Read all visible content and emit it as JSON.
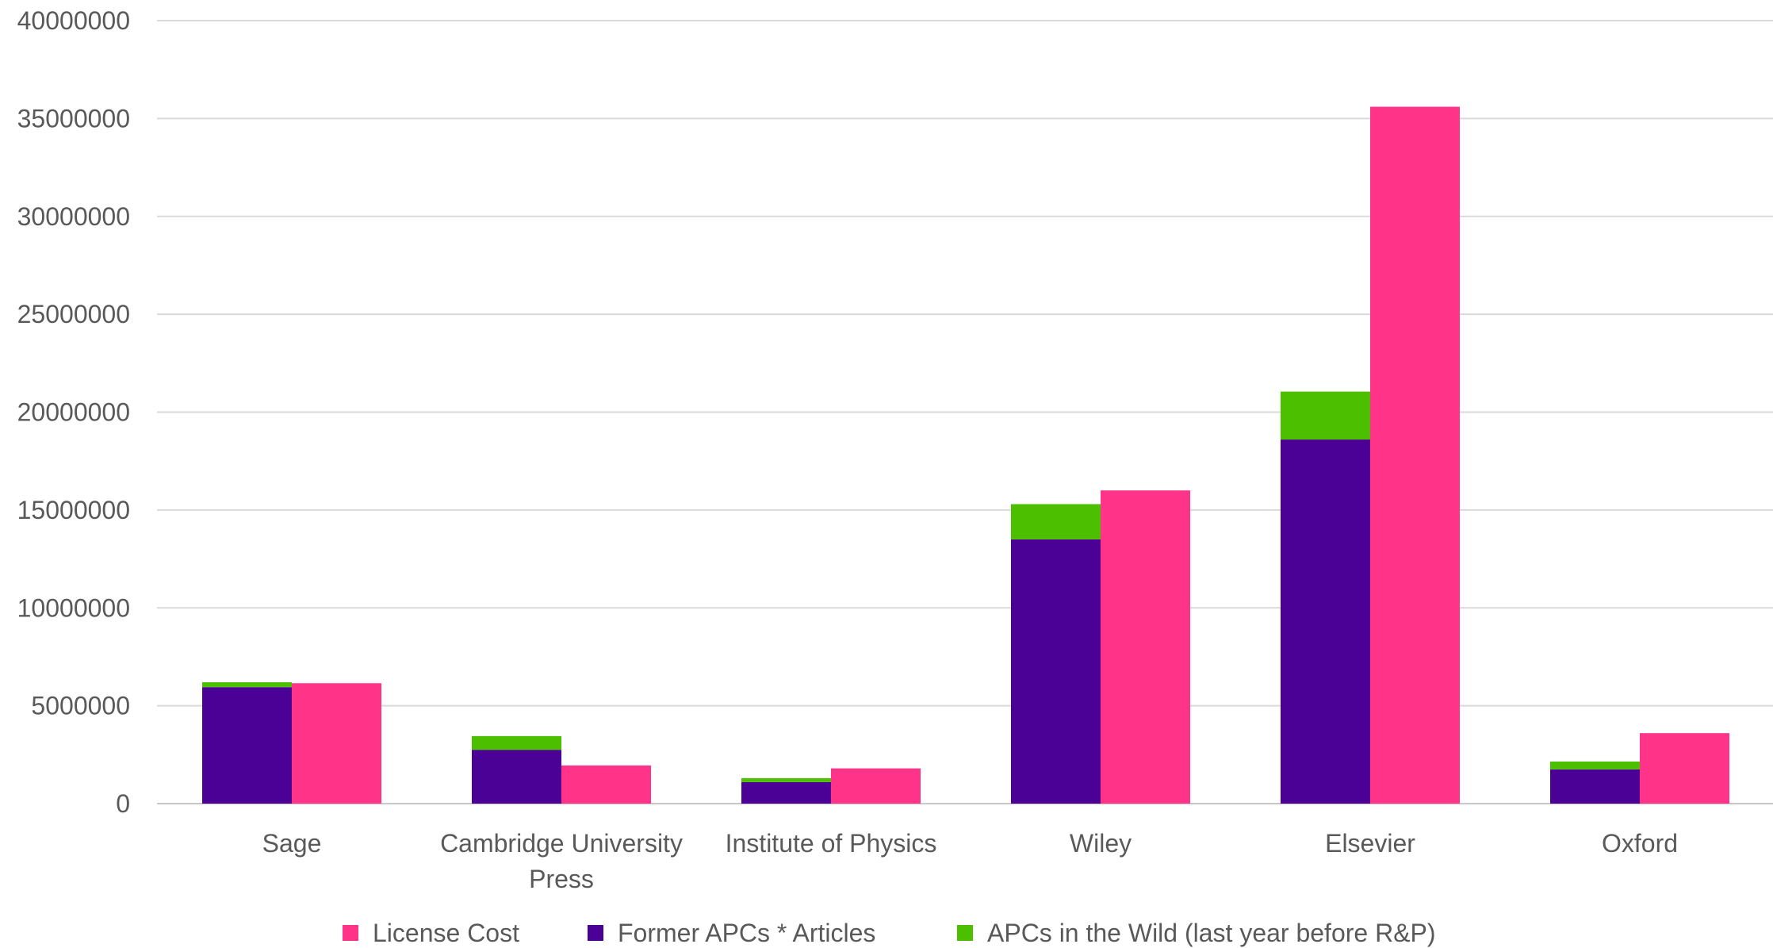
{
  "chart_data": {
    "type": "bar",
    "categories": [
      "Sage",
      "Cambridge University Press",
      "Institute of Physics",
      "Wiley",
      "Elsevier",
      "Oxford"
    ],
    "category_lines": [
      [
        "Sage"
      ],
      [
        "Cambridge University",
        "Press"
      ],
      [
        "Institute of Physics"
      ],
      [
        "Wiley"
      ],
      [
        "Elsevier"
      ],
      [
        "Oxford"
      ]
    ],
    "series": [
      {
        "name": "Former APCs * Articles",
        "stack": "apc",
        "color": "#4B0096",
        "values": [
          5950000,
          2750000,
          1100000,
          13500000,
          18600000,
          1750000
        ]
      },
      {
        "name": "APCs in the Wild (last year before R&P)",
        "stack": "apc",
        "color": "#4CC000",
        "values": [
          250000,
          700000,
          200000,
          1800000,
          2450000,
          400000
        ]
      },
      {
        "name": "License Cost",
        "stack": "license",
        "color": "#FF3388",
        "values": [
          6150000,
          1950000,
          1800000,
          16000000,
          35600000,
          3600000
        ]
      }
    ],
    "legend_order": [
      "License Cost",
      "Former APCs * Articles",
      "APCs in the Wild (last year before R&P)"
    ],
    "legend_position": "bottom",
    "y_ticks": [
      "0",
      "5000000",
      "10000000",
      "15000000",
      "20000000",
      "25000000",
      "30000000",
      "35000000",
      "40000000"
    ],
    "ylim": [
      0,
      40000000
    ],
    "grid": true,
    "title": "",
    "xlabel": "",
    "ylabel": ""
  }
}
